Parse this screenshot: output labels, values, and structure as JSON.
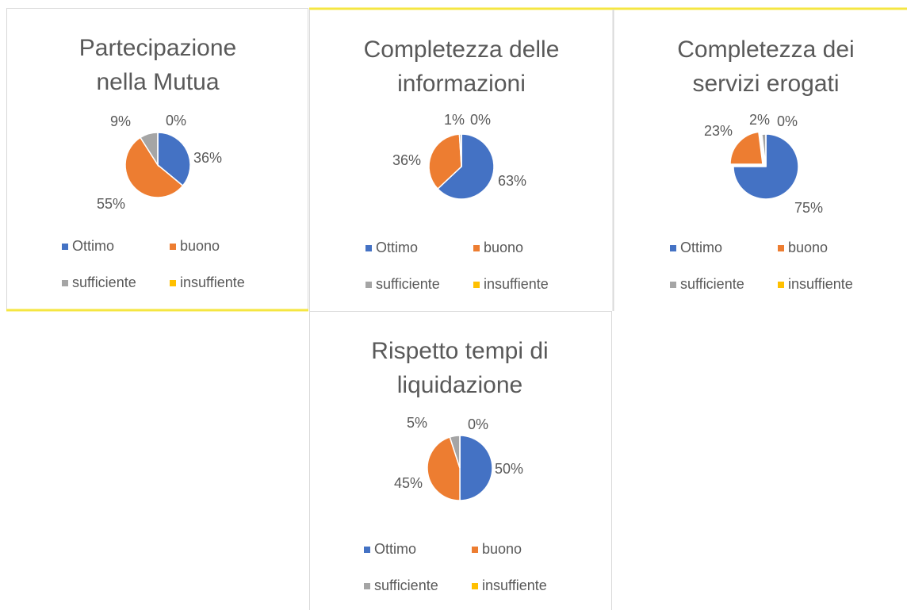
{
  "chart_data": [
    {
      "type": "pie",
      "title": [
        "Partecipazione",
        "nella Mutua"
      ],
      "categories": [
        "Ottimo",
        "buono",
        "sufficiente",
        "insuffiente"
      ],
      "values": [
        36,
        55,
        9,
        0
      ],
      "value_labels": [
        "36%",
        "55%",
        "9%",
        "0%"
      ],
      "colors": [
        "#4472c4",
        "#ed7d31",
        "#a5a5a5",
        "#ffc000"
      ],
      "legend": "bottom"
    },
    {
      "type": "pie",
      "title": [
        "Completezza delle",
        "informazioni"
      ],
      "categories": [
        "Ottimo",
        "buono",
        "sufficiente",
        "insuffiente"
      ],
      "values": [
        63,
        36,
        1,
        0
      ],
      "value_labels": [
        "63%",
        "36%",
        "1%",
        "0%"
      ],
      "colors": [
        "#4472c4",
        "#ed7d31",
        "#a5a5a5",
        "#ffc000"
      ],
      "legend": "bottom"
    },
    {
      "type": "pie",
      "title": [
        "Completezza dei",
        "servizi  erogati"
      ],
      "categories": [
        "Ottimo",
        "buono",
        "sufficiente",
        "insuffiente"
      ],
      "values": [
        75,
        23,
        2,
        0
      ],
      "value_labels": [
        "75%",
        "23%",
        "2%",
        "0%"
      ],
      "colors": [
        "#4472c4",
        "#ed7d31",
        "#a5a5a5",
        "#ffc000"
      ],
      "legend": "bottom"
    },
    {
      "type": "pie",
      "title": [
        "Rispetto tempi di",
        "liquidazione"
      ],
      "categories": [
        "Ottimo",
        "buono",
        "sufficiente",
        "insuffiente"
      ],
      "values": [
        50,
        45,
        5,
        0
      ],
      "value_labels": [
        "50%",
        "45%",
        "5%",
        "0%"
      ],
      "colors": [
        "#4472c4",
        "#ed7d31",
        "#a5a5a5",
        "#ffc000"
      ],
      "legend": "bottom"
    }
  ]
}
